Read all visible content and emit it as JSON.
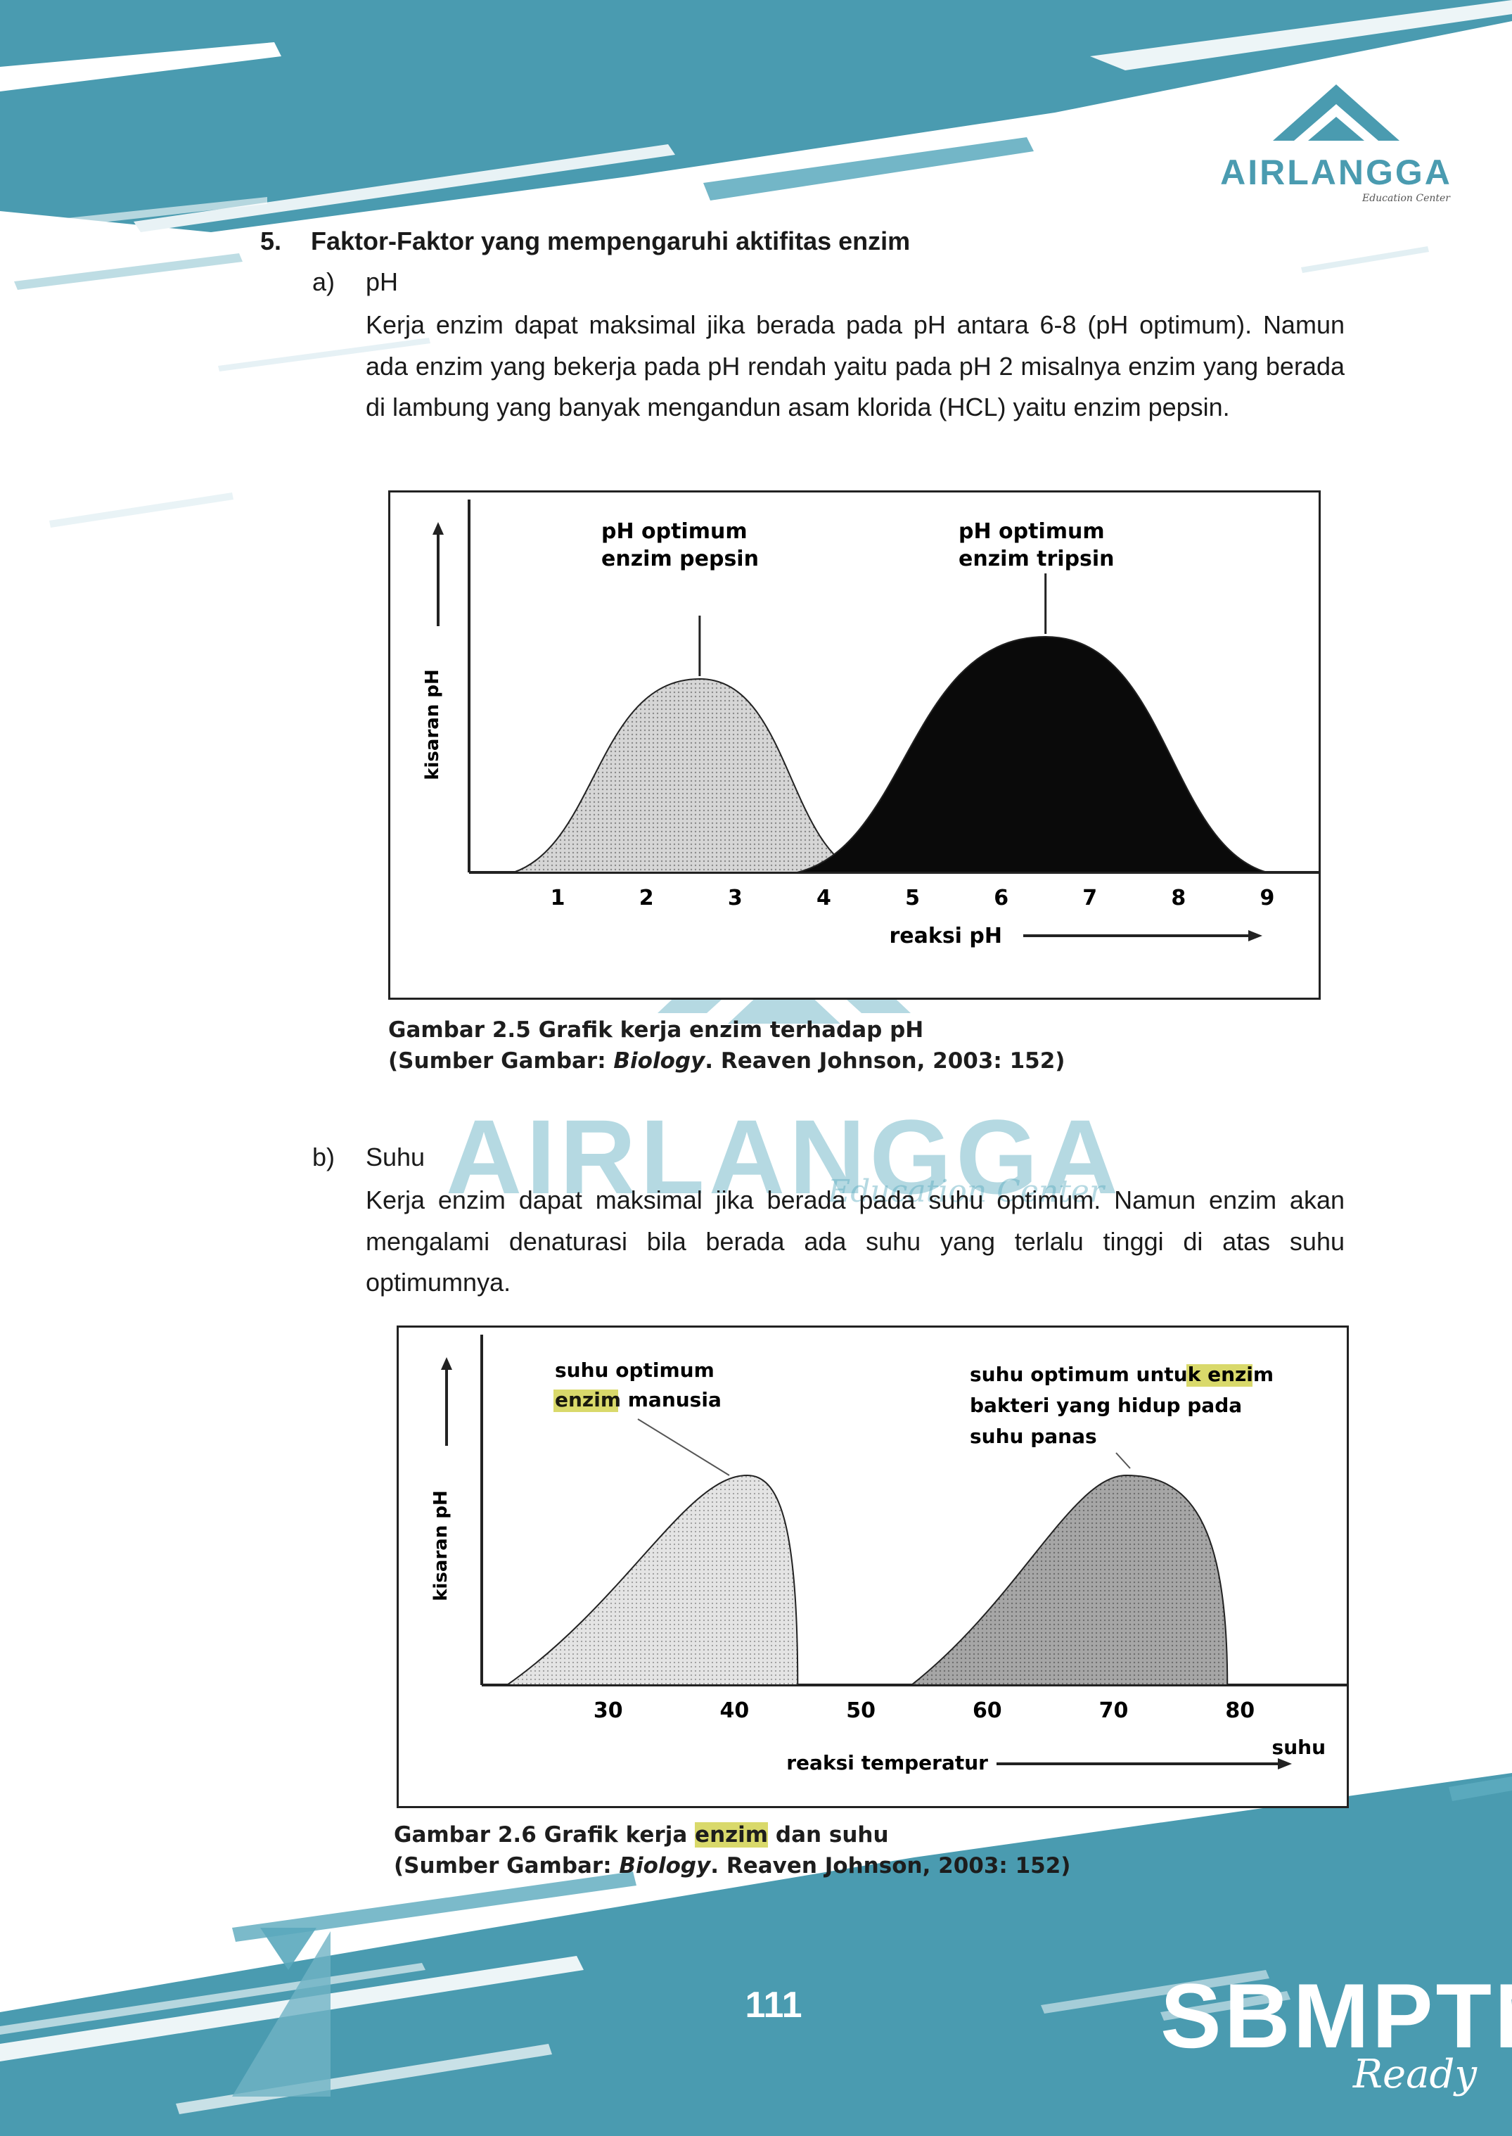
{
  "brand": {
    "name": "AIRLANGGA",
    "tagline": "Education Center"
  },
  "section": {
    "number": "5.",
    "title": "Faktor-Faktor yang mempengaruhi aktifitas enzim"
  },
  "items": [
    {
      "label": "a)",
      "title": "pH",
      "text": "Kerja enzim dapat maksimal jika berada pada pH antara 6-8 (pH optimum). Namun ada enzim yang bekerja pada pH rendah yaitu pada pH 2 misalnya enzim yang berada di lambung yang banyak mengandun asam klorida (HCL) yaitu enzim pepsin."
    },
    {
      "label": "b)",
      "title": "Suhu",
      "text": "Kerja enzim dapat maksimal jika berada pada suhu optimum. Namun enzim akan mengalami denaturasi bila berada ada suhu yang terlalu tinggi di atas suhu optimumnya."
    }
  ],
  "figures": [
    {
      "ylabel": "kisaran pH",
      "xlabel": "reaksi pH",
      "ticks": [
        "1",
        "2",
        "3",
        "4",
        "5",
        "6",
        "7",
        "8",
        "9"
      ],
      "annotations": [
        {
          "line1": "pH optimum",
          "line2": "enzim pepsin"
        },
        {
          "line1": "pH optimum",
          "line2": "enzim tripsin"
        }
      ],
      "caption_line1": "Gambar 2.5 Grafik kerja enzim terhadap pH",
      "caption_source_prefix": "(Sumber Gambar: ",
      "caption_source_italic": "Biology",
      "caption_source_suffix": ". Reaven Johnson, 2003: 152)"
    },
    {
      "ylabel": "kisaran pH",
      "xlabel": "reaksi temperatur",
      "xlabel_extra": "suhu",
      "ticks": [
        "30",
        "40",
        "50",
        "60",
        "70",
        "80"
      ],
      "annotations": [
        {
          "line1": "suhu optimum",
          "line2_hl": "enzim",
          "line2_rest": " manusia"
        },
        {
          "line1_pre": "suhu optimum untuk ",
          "line1_hl": "enzim",
          "line2": "bakteri yang hidup pada",
          "line3": "suhu panas"
        }
      ],
      "caption_pre": "Gambar 2.6 Grafik kerja ",
      "caption_hl": "enzim",
      "caption_post": " dan suhu",
      "caption_source_prefix": "(Sumber Gambar: ",
      "caption_source_italic": "Biology",
      "caption_source_suffix": ". Reaven Johnson, 2003: 152)"
    }
  ],
  "chart_data": [
    {
      "type": "area",
      "xlabel": "reaksi pH",
      "ylabel": "kisaran pH",
      "x": [
        1,
        2,
        3,
        4,
        5,
        6,
        7,
        8,
        9
      ],
      "series": [
        {
          "name": "enzim pepsin",
          "peak_x": 2.6,
          "range": [
            0.5,
            4.4
          ]
        },
        {
          "name": "enzim tripsin",
          "peak_x": 6.5,
          "range": [
            3.7,
            9.0
          ]
        }
      ]
    },
    {
      "type": "area",
      "xlabel": "reaksi temperatur",
      "ylabel": "kisaran pH",
      "x": [
        30,
        40,
        50,
        60,
        70,
        80
      ],
      "series": [
        {
          "name": "enzim manusia",
          "peak_x": 41,
          "range": [
            22,
            45
          ]
        },
        {
          "name": "enzim bakteri yang hidup pada suhu panas",
          "peak_x": 71,
          "range": [
            54,
            79
          ]
        }
      ]
    }
  ],
  "page": {
    "number": "111"
  },
  "footer_brand": {
    "name": "SBMPTN",
    "tagline": "Ready"
  },
  "colors": {
    "accent": "#4a9bb0",
    "accent_dark": "#3f8ea6"
  }
}
